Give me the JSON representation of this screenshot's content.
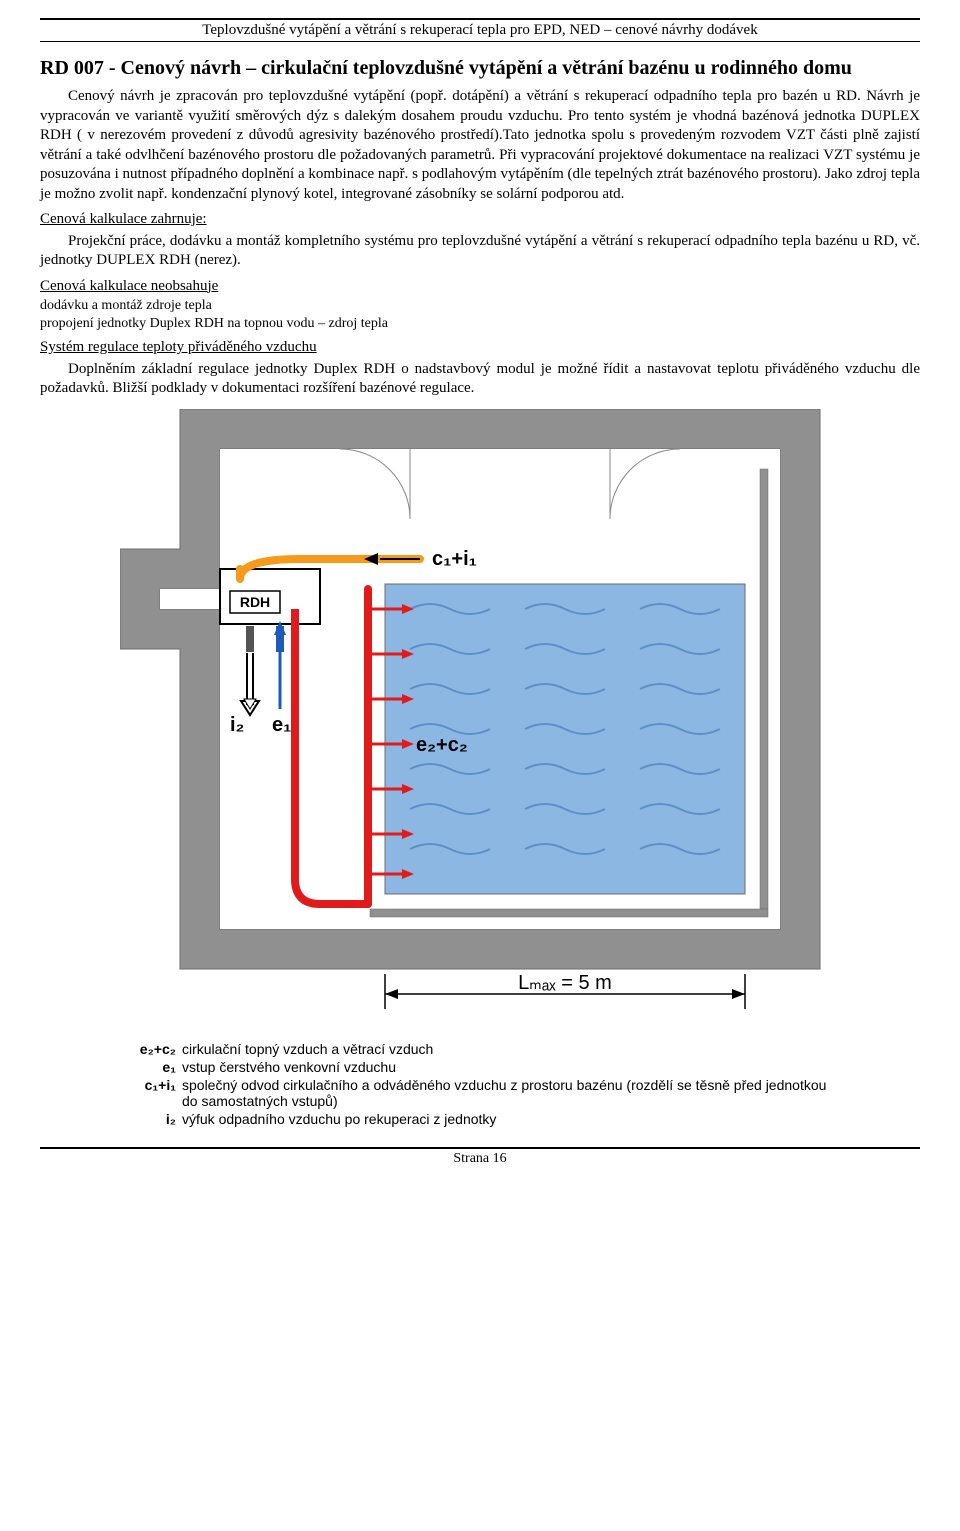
{
  "header": "Teplovzdušné vytápění a větrání s rekuperací tepla pro EPD, NED – cenové návrhy dodávek",
  "title": "RD 007 - Cenový návrh – cirkulační teplovzdušné vytápění a větrání bazénu u rodinného domu",
  "p1": "Cenový návrh je zpracován pro teplovzdušné vytápění (popř. dotápění) a větrání s rekuperací odpadního tepla pro bazén u RD. Návrh je vypracován ve variantě využití směrových dýz s dalekým dosahem proudu vzduchu. Pro tento systém je vhodná bazénová jednotka DUPLEX RDH ( v nerezovém provedení z důvodů agresivity bazénového prostředí).Tato jednotka spolu s provedeným rozvodem VZT části plně zajistí větrání a také odvlhčení bazénového prostoru dle požadovaných parametrů. Při vypracování projektové dokumentace na realizaci VZT systému je posuzována i nutnost případného doplnění a kombinace např. s podlahovým vytápěním (dle tepelných ztrát bazénového prostoru). Jako zdroj tepla je možno zvolit např. kondenzační plynový kotel, integrované zásobníky se solární podporou atd.",
  "sec1_title": "Cenová kalkulace zahrnuje:",
  "sec1_body": "Projekční práce, dodávku a montáž kompletního systému pro teplovzdušné vytápění a větrání s rekuperací odpadního tepla bazénu u RD, vč. jednotky DUPLEX RDH (nerez).",
  "sec2_title": "Cenová kalkulace neobsahuje",
  "sec2_line1": "dodávku a montáž zdroje tepla",
  "sec2_line2": "propojení jednotky Duplex RDH na topnou vodu – zdroj tepla",
  "sec3_title": "Systém regulace teploty přiváděného vzduchu",
  "sec3_body": "Doplněním základní regulace jednotky Duplex RDH o nadstavbový modul je možné řídit a nastavovat teplotu přiváděného vzduchu dle požadavků. Bližší podklady v dokumentaci rozšíření bazénové regulace.",
  "diagram": {
    "colors": {
      "wall": "#909090",
      "wall_stroke": "#6b6b6b",
      "bg": "#ffffff",
      "water": "#8db7e3",
      "wave": "#5b8fc8",
      "pipe_red": "#e11b1b",
      "pipe_orange": "#f59a1a",
      "arrow_black": "#000000",
      "arrow_blue": "#1e5bb8",
      "unit_fill": "#ffffff",
      "unit_stroke": "#000000",
      "text": "#000000"
    },
    "unit_label": "RDH",
    "labels": {
      "c1i1": "c₁+i₁",
      "i2": "i₂",
      "e1": "e₁",
      "e2c2": "e₂+c₂",
      "lmax": "Lₘₐₓ = 5 m"
    }
  },
  "legend": [
    {
      "key": "e₂+c₂",
      "text": "cirkulační topný vzduch a větrací vzduch"
    },
    {
      "key": "e₁",
      "text": "vstup čerstvého venkovní vzduchu"
    },
    {
      "key": "c₁+i₁",
      "text": "společný odvod cirkulačního a odváděného vzduchu z prostoru bazénu (rozdělí se těsně před jednotkou do samostatných vstupů)"
    },
    {
      "key": "i₂",
      "text": "výfuk odpadního vzduchu po rekuperaci z jednotky"
    }
  ],
  "footer": "Strana 16"
}
